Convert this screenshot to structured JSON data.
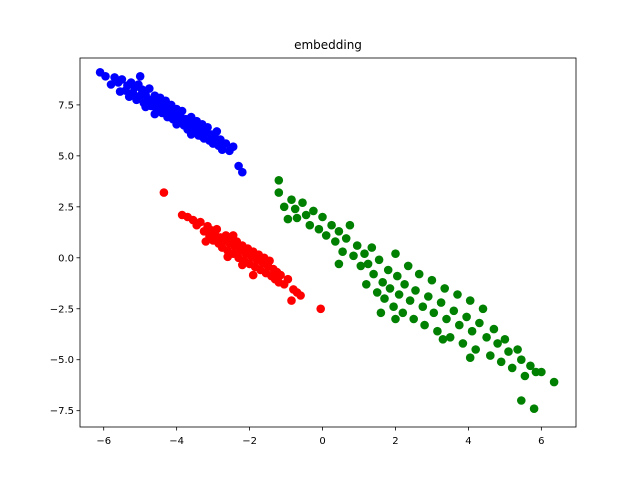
{
  "chart_data": {
    "type": "scatter",
    "title": "embedding",
    "xlabel": "",
    "ylabel": "",
    "xlim": [
      -6.65,
      6.95
    ],
    "ylim": [
      -8.3,
      9.8
    ],
    "xticks": [
      -6,
      -4,
      -2,
      0,
      2,
      4,
      6
    ],
    "yticks": [
      -7.5,
      -5.0,
      -2.5,
      0.0,
      2.5,
      5.0,
      7.5
    ],
    "xtick_labels": [
      "−6",
      "−4",
      "−2",
      "0",
      "2",
      "4",
      "6"
    ],
    "ytick_labels": [
      "−7.5",
      "−5.0",
      "−2.5",
      "0.0",
      "2.5",
      "5.0",
      "7.5"
    ],
    "grid": false,
    "series": [
      {
        "color": "#0000ff",
        "points": [
          [
            -6.1,
            9.1
          ],
          [
            -5.95,
            8.9
          ],
          [
            -5.8,
            8.5
          ],
          [
            -5.7,
            8.85
          ],
          [
            -5.6,
            8.6
          ],
          [
            -5.5,
            8.75
          ],
          [
            -5.4,
            8.2
          ],
          [
            -5.35,
            8.45
          ],
          [
            -5.3,
            7.9
          ],
          [
            -5.25,
            8.6
          ],
          [
            -5.2,
            8.1
          ],
          [
            -5.15,
            8.35
          ],
          [
            -5.1,
            7.75
          ],
          [
            -5.05,
            8.5
          ],
          [
            -5.0,
            8.9
          ],
          [
            -5.0,
            7.95
          ],
          [
            -4.95,
            8.25
          ],
          [
            -4.9,
            7.6
          ],
          [
            -4.85,
            8.0
          ],
          [
            -4.8,
            7.8
          ],
          [
            -4.75,
            8.3
          ],
          [
            -4.7,
            7.45
          ],
          [
            -4.65,
            7.7
          ],
          [
            -4.6,
            7.95
          ],
          [
            -4.55,
            7.3
          ],
          [
            -4.5,
            7.6
          ],
          [
            -4.45,
            7.85
          ],
          [
            -4.4,
            7.1
          ],
          [
            -4.35,
            7.4
          ],
          [
            -4.3,
            7.7
          ],
          [
            -4.25,
            6.9
          ],
          [
            -4.2,
            7.2
          ],
          [
            -4.15,
            7.5
          ],
          [
            -4.1,
            6.8
          ],
          [
            -4.05,
            7.05
          ],
          [
            -4.0,
            7.3
          ],
          [
            -3.95,
            6.65
          ],
          [
            -3.9,
            6.95
          ],
          [
            -3.85,
            7.2
          ],
          [
            -3.8,
            6.5
          ],
          [
            -3.75,
            6.8
          ],
          [
            -3.7,
            6.3
          ],
          [
            -3.65,
            6.6
          ],
          [
            -3.6,
            6.9
          ],
          [
            -3.55,
            6.2
          ],
          [
            -3.5,
            6.45
          ],
          [
            -3.45,
            6.7
          ],
          [
            -3.4,
            6.0
          ],
          [
            -3.35,
            6.3
          ],
          [
            -3.3,
            6.55
          ],
          [
            -3.25,
            5.85
          ],
          [
            -3.2,
            6.15
          ],
          [
            -3.15,
            6.4
          ],
          [
            -3.1,
            5.75
          ],
          [
            -3.05,
            6.05
          ],
          [
            -3.0,
            5.6
          ],
          [
            -2.95,
            5.9
          ],
          [
            -2.9,
            6.2
          ],
          [
            -2.85,
            5.5
          ],
          [
            -2.8,
            5.8
          ],
          [
            -2.75,
            5.3
          ],
          [
            -2.65,
            5.6
          ],
          [
            -2.55,
            5.25
          ],
          [
            -2.45,
            5.45
          ],
          [
            -2.3,
            4.5
          ],
          [
            -2.2,
            4.2
          ],
          [
            -4.6,
            7.05
          ],
          [
            -4.0,
            6.55
          ],
          [
            -3.6,
            6.05
          ],
          [
            -5.55,
            8.15
          ],
          [
            -4.85,
            7.4
          ],
          [
            -3.3,
            5.95
          ]
        ]
      },
      {
        "color": "#ff0000",
        "points": [
          [
            -4.35,
            3.2
          ],
          [
            -3.85,
            2.1
          ],
          [
            -3.7,
            2.0
          ],
          [
            -3.55,
            1.85
          ],
          [
            -3.45,
            1.6
          ],
          [
            -3.35,
            1.75
          ],
          [
            -3.25,
            1.3
          ],
          [
            -3.15,
            1.55
          ],
          [
            -3.1,
            1.05
          ],
          [
            -3.05,
            1.35
          ],
          [
            -3.0,
            0.85
          ],
          [
            -2.95,
            1.15
          ],
          [
            -2.9,
            1.4
          ],
          [
            -2.85,
            0.7
          ],
          [
            -2.8,
            1.0
          ],
          [
            -2.75,
            0.5
          ],
          [
            -2.7,
            0.85
          ],
          [
            -2.65,
            1.1
          ],
          [
            -2.6,
            0.35
          ],
          [
            -2.55,
            0.7
          ],
          [
            -2.5,
            0.95
          ],
          [
            -2.45,
            0.2
          ],
          [
            -2.4,
            0.55
          ],
          [
            -2.35,
            0.8
          ],
          [
            -2.3,
            0.0
          ],
          [
            -2.25,
            0.35
          ],
          [
            -2.2,
            0.6
          ],
          [
            -2.15,
            -0.15
          ],
          [
            -2.1,
            0.2
          ],
          [
            -2.05,
            0.45
          ],
          [
            -2.0,
            -0.3
          ],
          [
            -1.95,
            0.05
          ],
          [
            -1.9,
            0.3
          ],
          [
            -1.85,
            -0.45
          ],
          [
            -1.8,
            -0.1
          ],
          [
            -1.75,
            0.15
          ],
          [
            -1.7,
            -0.6
          ],
          [
            -1.65,
            -0.25
          ],
          [
            -1.6,
            0.0
          ],
          [
            -1.55,
            -0.75
          ],
          [
            -1.5,
            -0.4
          ],
          [
            -1.45,
            -0.15
          ],
          [
            -1.4,
            -0.9
          ],
          [
            -1.35,
            -0.55
          ],
          [
            -1.3,
            -1.05
          ],
          [
            -1.25,
            -0.7
          ],
          [
            -1.2,
            -1.2
          ],
          [
            -1.15,
            -0.85
          ],
          [
            -1.05,
            -1.3
          ],
          [
            -0.95,
            -1.05
          ],
          [
            -0.8,
            -1.55
          ],
          [
            -0.7,
            -1.7
          ],
          [
            -0.6,
            -1.85
          ],
          [
            -0.85,
            -2.1
          ],
          [
            -0.05,
            -2.5
          ],
          [
            -2.6,
            0.05
          ],
          [
            -2.2,
            -0.35
          ],
          [
            -1.9,
            -0.85
          ],
          [
            -3.2,
            0.8
          ],
          [
            -2.45,
            1.1
          ]
        ]
      },
      {
        "color": "#008000",
        "points": [
          [
            -1.2,
            3.8
          ],
          [
            -1.2,
            3.2
          ],
          [
            -1.05,
            2.5
          ],
          [
            -0.95,
            1.9
          ],
          [
            -0.85,
            2.85
          ],
          [
            -0.75,
            2.4
          ],
          [
            -0.7,
            1.95
          ],
          [
            -0.55,
            2.7
          ],
          [
            -0.45,
            2.1
          ],
          [
            -0.35,
            1.6
          ],
          [
            -0.25,
            2.3
          ],
          [
            -0.1,
            1.4
          ],
          [
            0.0,
            2.0
          ],
          [
            0.1,
            1.1
          ],
          [
            0.25,
            1.6
          ],
          [
            0.35,
            0.8
          ],
          [
            0.45,
            1.3
          ],
          [
            0.55,
            0.3
          ],
          [
            0.65,
            0.95
          ],
          [
            0.75,
            1.6
          ],
          [
            0.85,
            0.1
          ],
          [
            0.95,
            0.6
          ],
          [
            1.05,
            -0.4
          ],
          [
            1.15,
            0.2
          ],
          [
            1.2,
            -1.3
          ],
          [
            1.25,
            -0.3
          ],
          [
            1.35,
            0.5
          ],
          [
            1.4,
            -0.8
          ],
          [
            1.5,
            -1.7
          ],
          [
            1.55,
            -0.1
          ],
          [
            1.65,
            -1.2
          ],
          [
            1.7,
            -2.0
          ],
          [
            1.8,
            -0.6
          ],
          [
            1.85,
            -1.5
          ],
          [
            1.95,
            -2.4
          ],
          [
            2.0,
            0.2
          ],
          [
            2.05,
            -0.9
          ],
          [
            2.1,
            -1.8
          ],
          [
            2.2,
            -2.7
          ],
          [
            2.25,
            -1.3
          ],
          [
            2.35,
            -0.4
          ],
          [
            2.4,
            -2.1
          ],
          [
            2.5,
            -3.0
          ],
          [
            2.55,
            -1.6
          ],
          [
            2.65,
            -0.8
          ],
          [
            2.75,
            -2.4
          ],
          [
            2.8,
            -3.3
          ],
          [
            2.9,
            -1.9
          ],
          [
            3.0,
            -1.1
          ],
          [
            3.05,
            -2.7
          ],
          [
            3.15,
            -3.6
          ],
          [
            3.25,
            -2.2
          ],
          [
            3.35,
            -1.5
          ],
          [
            3.4,
            -3.0
          ],
          [
            3.5,
            -3.9
          ],
          [
            3.6,
            -2.6
          ],
          [
            3.7,
            -1.8
          ],
          [
            3.75,
            -3.3
          ],
          [
            3.85,
            -4.2
          ],
          [
            3.95,
            -2.9
          ],
          [
            4.05,
            -2.1
          ],
          [
            4.1,
            -3.6
          ],
          [
            4.2,
            -4.5
          ],
          [
            4.3,
            -3.2
          ],
          [
            4.4,
            -2.5
          ],
          [
            4.5,
            -3.9
          ],
          [
            4.6,
            -4.8
          ],
          [
            4.7,
            -3.5
          ],
          [
            4.8,
            -4.2
          ],
          [
            4.9,
            -5.1
          ],
          [
            5.0,
            -4.0
          ],
          [
            5.1,
            -4.6
          ],
          [
            5.2,
            -5.4
          ],
          [
            5.35,
            -4.5
          ],
          [
            5.45,
            -5.0
          ],
          [
            5.55,
            -5.8
          ],
          [
            5.7,
            -5.3
          ],
          [
            5.85,
            -5.6
          ],
          [
            6.0,
            -5.6
          ],
          [
            6.35,
            -6.1
          ],
          [
            5.45,
            -7.0
          ],
          [
            5.8,
            -7.4
          ],
          [
            1.6,
            -2.7
          ],
          [
            2.0,
            -3.0
          ],
          [
            3.3,
            -4.0
          ],
          [
            4.05,
            -4.9
          ],
          [
            0.45,
            -0.3
          ]
        ]
      }
    ]
  }
}
